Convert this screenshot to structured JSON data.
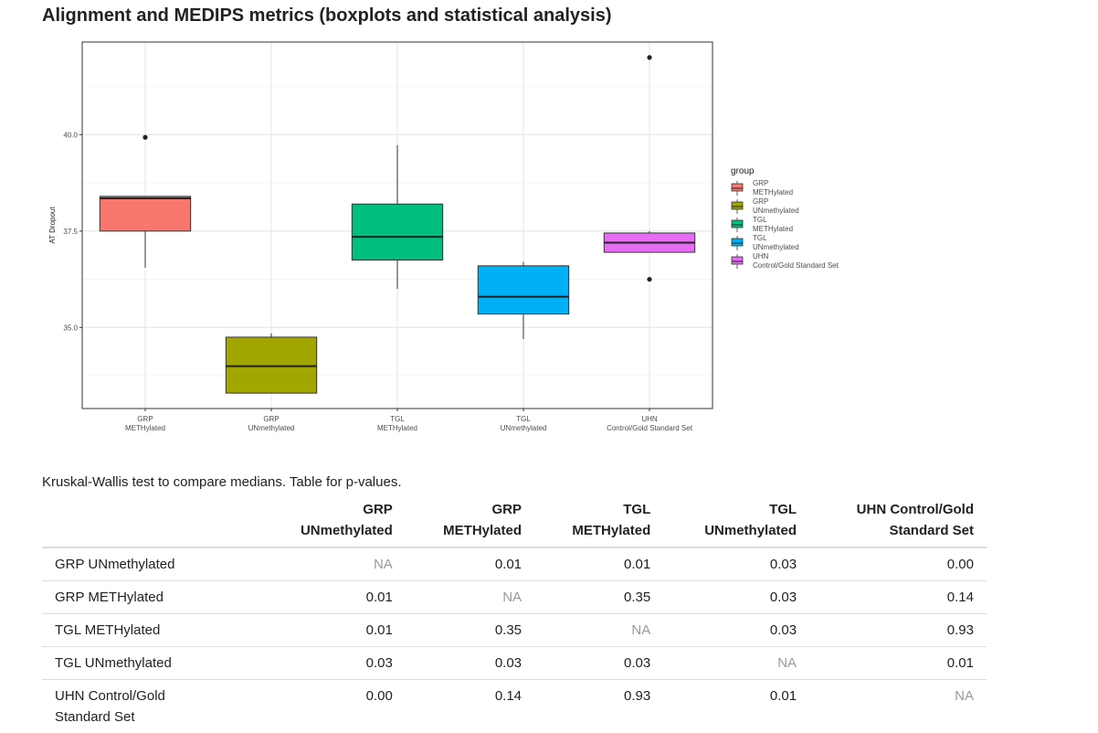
{
  "page": {
    "title": "Alignment and MEDIPS metrics (boxplots and statistical analysis)",
    "caption": "Kruskal-Wallis test to compare medians. Table for p-values."
  },
  "chart_data": {
    "type": "boxplot",
    "xlabel": "",
    "ylabel": "AT Dropout",
    "ylim": [
      32.9,
      42.4
    ],
    "yticks": [
      35.0,
      37.5,
      40.0
    ],
    "ytick_labels": [
      "35.0",
      "37.5",
      "40.0"
    ],
    "grid": true,
    "legend": {
      "title": "group",
      "position": "right"
    },
    "groups": [
      {
        "label_line1": "GRP",
        "label_line2": "METHylated",
        "color": "#F8766D",
        "whisker_low": 36.55,
        "q1": 37.5,
        "median": 38.35,
        "q3": 38.4,
        "whisker_high": 38.4,
        "outliers": [
          39.93
        ]
      },
      {
        "label_line1": "GRP",
        "label_line2": "UNmethylated",
        "color": "#A3A500",
        "whisker_low": 33.3,
        "q1": 33.3,
        "median": 34.0,
        "q3": 34.75,
        "whisker_high": 34.85,
        "outliers": []
      },
      {
        "label_line1": "TGL",
        "label_line2": "METHylated",
        "color": "#00BF7D",
        "whisker_low": 36.0,
        "q1": 36.75,
        "median": 37.35,
        "q3": 38.2,
        "whisker_high": 39.73,
        "outliers": []
      },
      {
        "label_line1": "TGL",
        "label_line2": "UNmethylated",
        "color": "#00B0F6",
        "whisker_low": 34.7,
        "q1": 35.35,
        "median": 35.8,
        "q3": 36.6,
        "whisker_high": 36.7,
        "outliers": []
      },
      {
        "label_line1": "UHN",
        "label_line2": "Control/Gold Standard Set",
        "color": "#E76BF3",
        "whisker_low": 36.95,
        "q1": 36.95,
        "median": 37.2,
        "q3": 37.45,
        "whisker_high": 37.5,
        "outliers": [
          36.25,
          42.0
        ]
      }
    ]
  },
  "table": {
    "columns": [
      {
        "line1": "GRP",
        "line2": "UNmethylated"
      },
      {
        "line1": "GRP",
        "line2": "METHylated"
      },
      {
        "line1": "TGL",
        "line2": "METHylated"
      },
      {
        "line1": "TGL",
        "line2": "UNmethylated"
      },
      {
        "line1": "UHN Control/Gold",
        "line2": "Standard Set"
      }
    ],
    "rows": [
      {
        "label_line1": "GRP UNmethylated",
        "label_line2": "",
        "values": [
          "NA",
          "0.01",
          "0.01",
          "0.03",
          "0.00"
        ]
      },
      {
        "label_line1": "GRP METHylated",
        "label_line2": "",
        "values": [
          "0.01",
          "NA",
          "0.35",
          "0.03",
          "0.14"
        ]
      },
      {
        "label_line1": "TGL METHylated",
        "label_line2": "",
        "values": [
          "0.01",
          "0.35",
          "NA",
          "0.03",
          "0.93"
        ]
      },
      {
        "label_line1": "TGL UNmethylated",
        "label_line2": "",
        "values": [
          "0.03",
          "0.03",
          "0.03",
          "NA",
          "0.01"
        ]
      },
      {
        "label_line1": "UHN Control/Gold",
        "label_line2": "Standard Set",
        "values": [
          "0.00",
          "0.14",
          "0.93",
          "0.01",
          "NA"
        ]
      }
    ]
  }
}
